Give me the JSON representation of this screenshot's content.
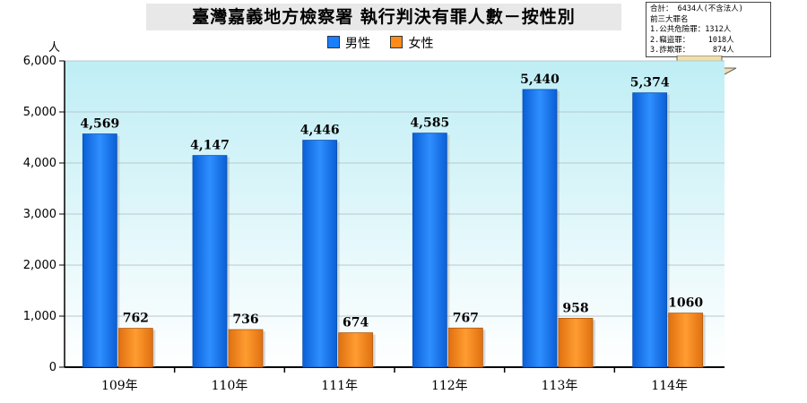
{
  "title": "臺灣嘉義地方檢察署 執行判決有罪人數－按性別",
  "ylabel": "人",
  "note_lines": [
    "合計： 6434人(不含法人)",
    "前三大罪名",
    "1.公共危險罪：1312人",
    "2.竊盜罪：    1018人",
    "3.詐欺罪：     874人"
  ],
  "colors": {
    "male": "#1a7fff",
    "female": "#ff8c1a"
  },
  "chart_data": {
    "type": "bar",
    "categories": [
      "109年",
      "110年",
      "111年",
      "112年",
      "113年",
      "114年"
    ],
    "series": [
      {
        "name": "男性",
        "values": [
          4569,
          4147,
          4446,
          4585,
          5440,
          5374
        ],
        "labels": [
          "4,569",
          "4,147",
          "4,446",
          "4,585",
          "5,440",
          "5,374"
        ]
      },
      {
        "name": "女性",
        "values": [
          762,
          736,
          674,
          767,
          958,
          1060
        ],
        "labels": [
          "762",
          "736",
          "674",
          "767",
          "958",
          "1060"
        ]
      }
    ],
    "ylim": [
      0,
      6000
    ],
    "yticks": [
      "0",
      "1,000",
      "2,000",
      "3,000",
      "4,000",
      "5,000",
      "6,000"
    ],
    "grid": true,
    "legend_position": "top-center"
  }
}
